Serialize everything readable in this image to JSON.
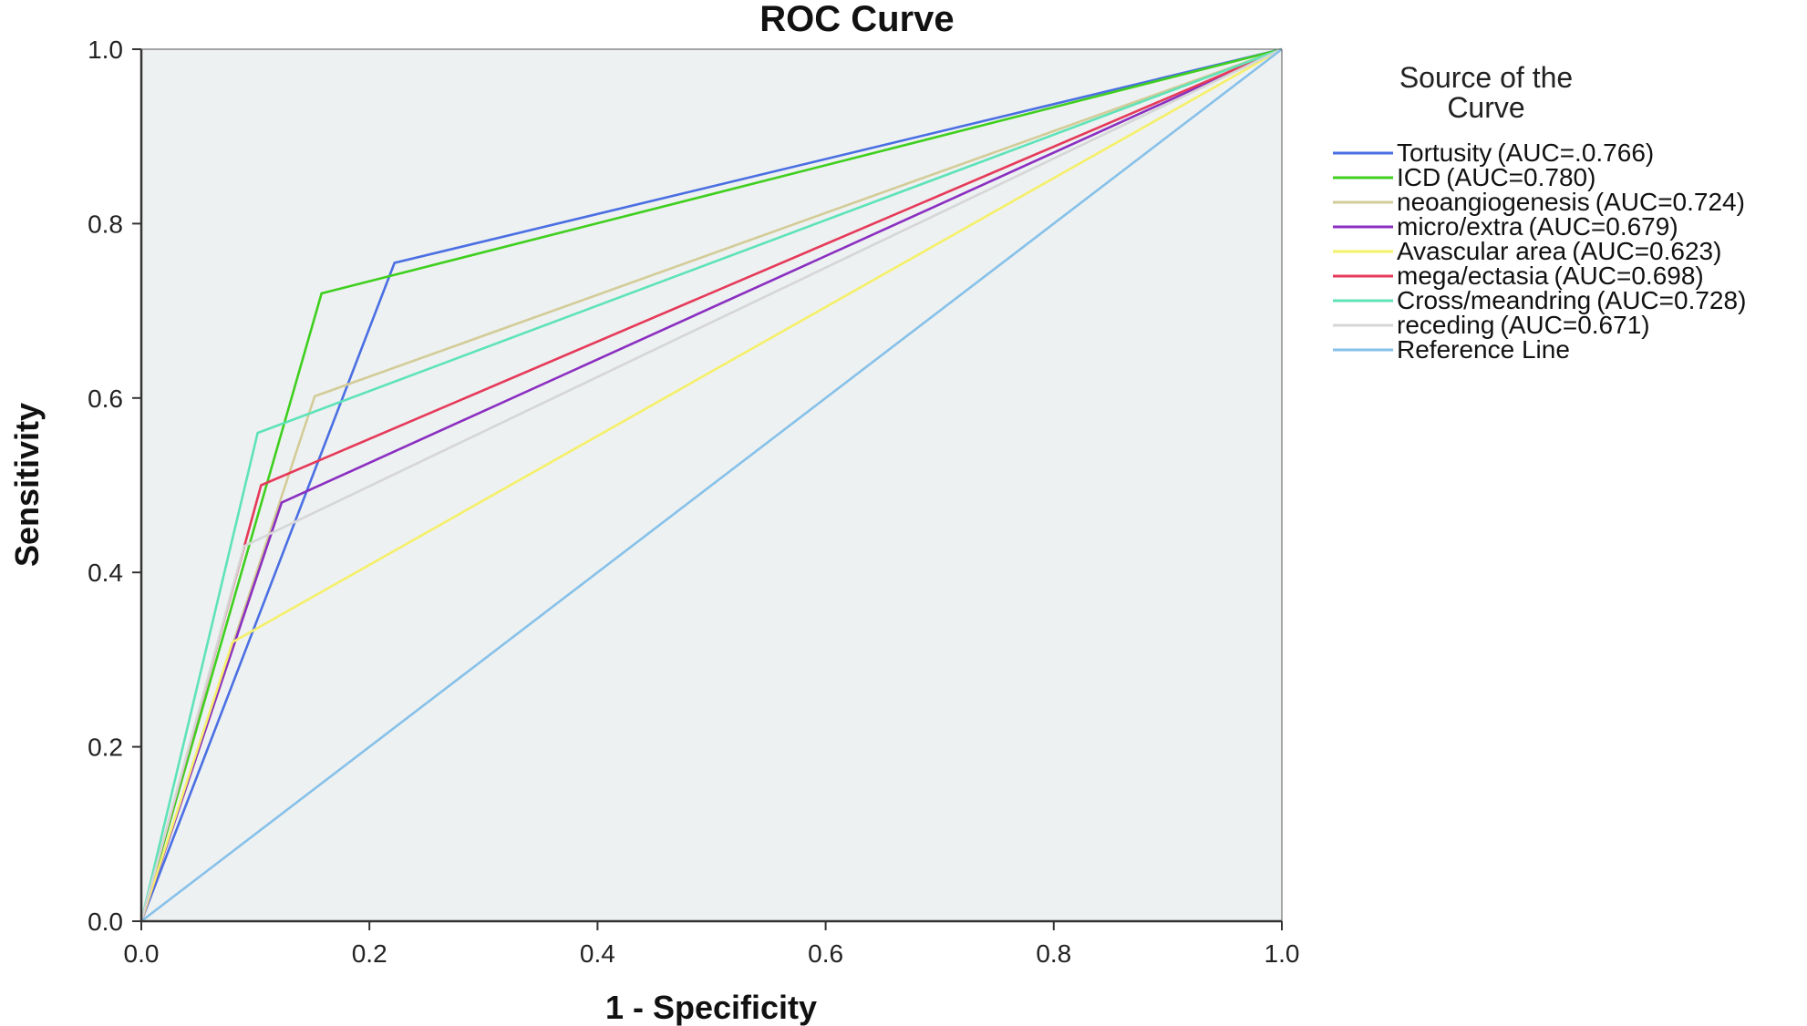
{
  "chart_data": {
    "type": "line",
    "title": "ROC Curve",
    "xlabel": "1 - Specificity",
    "ylabel": "Sensitivity",
    "xlim": [
      0,
      1
    ],
    "ylim": [
      0,
      1
    ],
    "x_ticks": [
      "0.0",
      "0.2",
      "0.4",
      "0.6",
      "0.8",
      "1.0"
    ],
    "y_ticks": [
      "0.0",
      "0.2",
      "0.4",
      "0.6",
      "0.8",
      "1.0"
    ],
    "grid": false,
    "plot_background": "#eef1f1",
    "legend_title": "Source of the Curve",
    "legend_position": "right",
    "series": [
      {
        "name": "Tortusity",
        "auc_label": "(AUC=.0.766)",
        "color": "#4a6fe3",
        "x": [
          0,
          0.222,
          1
        ],
        "y": [
          0,
          0.755,
          1
        ]
      },
      {
        "name": "ICD",
        "auc_label": "(AUC=0.780)",
        "color": "#3fcf1f",
        "x": [
          0,
          0.158,
          1
        ],
        "y": [
          0,
          0.72,
          1
        ]
      },
      {
        "name": "neoangiogenesis",
        "auc_label": "(AUC=0.724)",
        "color": "#d3cc98",
        "x": [
          0,
          0.152,
          1
        ],
        "y": [
          0,
          0.602,
          1
        ]
      },
      {
        "name": "micro/extra",
        "auc_label": "(AUC=0.679)",
        "color": "#8a2fc1",
        "x": [
          0,
          0.123,
          1
        ],
        "y": [
          0,
          0.48,
          1
        ]
      },
      {
        "name": "Avascular area",
        "auc_label": "(AUC=0.623)",
        "color": "#f5f06a",
        "x": [
          0,
          0.08,
          1
        ],
        "y": [
          0,
          0.32,
          1
        ]
      },
      {
        "name": "mega/ectasia",
        "auc_label": "(AUC=0.698)",
        "color": "#e53a5a",
        "x": [
          0,
          0.105,
          1
        ],
        "y": [
          0,
          0.5,
          1
        ]
      },
      {
        "name": "Cross/meandring",
        "auc_label": "(AUC=0.728)",
        "color": "#5ee3b8",
        "x": [
          0,
          0.102,
          1
        ],
        "y": [
          0,
          0.56,
          1
        ]
      },
      {
        "name": "receding",
        "auc_label": "(AUC=0.671)",
        "color": "#d6d6d6",
        "x": [
          0,
          0.09,
          1
        ],
        "y": [
          0,
          0.43,
          1
        ]
      },
      {
        "name": "Reference Line",
        "auc_label": "",
        "color": "#86c1ea",
        "x": [
          0,
          1
        ],
        "y": [
          0,
          1
        ]
      }
    ]
  }
}
